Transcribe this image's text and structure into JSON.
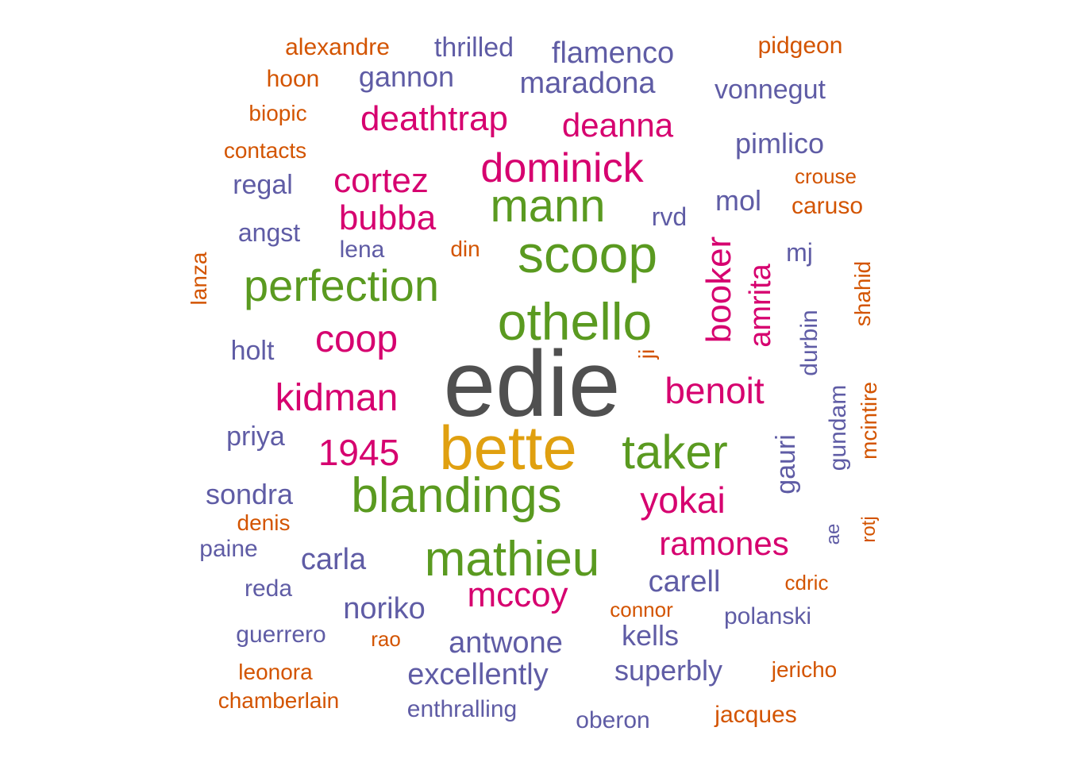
{
  "colors": {
    "gray": "#505050",
    "gold": "#E0A010",
    "green": "#5A9A20",
    "magenta": "#D6006F",
    "purple": "#5F5CA5",
    "orange": "#D35400"
  },
  "words": [
    {
      "text": "edie",
      "color": "gray"
    },
    {
      "text": "bette",
      "color": "gold"
    },
    {
      "text": "othello",
      "color": "green"
    },
    {
      "text": "scoop",
      "color": "green"
    },
    {
      "text": "mann",
      "color": "green"
    },
    {
      "text": "perfection",
      "color": "green"
    },
    {
      "text": "blandings",
      "color": "green"
    },
    {
      "text": "mathieu",
      "color": "green"
    },
    {
      "text": "taker",
      "color": "green"
    },
    {
      "text": "dominick",
      "color": "magenta"
    },
    {
      "text": "deathtrap",
      "color": "magenta"
    },
    {
      "text": "deanna",
      "color": "magenta"
    },
    {
      "text": "cortez",
      "color": "magenta"
    },
    {
      "text": "bubba",
      "color": "magenta"
    },
    {
      "text": "coop",
      "color": "magenta"
    },
    {
      "text": "kidman",
      "color": "magenta"
    },
    {
      "text": "1945",
      "color": "magenta"
    },
    {
      "text": "benoit",
      "color": "magenta"
    },
    {
      "text": "yokai",
      "color": "magenta"
    },
    {
      "text": "ramones",
      "color": "magenta"
    },
    {
      "text": "mccoy",
      "color": "magenta"
    },
    {
      "text": "booker",
      "color": "magenta"
    },
    {
      "text": "amrita",
      "color": "magenta"
    },
    {
      "text": "thrilled",
      "color": "purple"
    },
    {
      "text": "flamenco",
      "color": "purple"
    },
    {
      "text": "gannon",
      "color": "purple"
    },
    {
      "text": "maradona",
      "color": "purple"
    },
    {
      "text": "vonnegut",
      "color": "purple"
    },
    {
      "text": "pimlico",
      "color": "purple"
    },
    {
      "text": "regal",
      "color": "purple"
    },
    {
      "text": "mol",
      "color": "purple"
    },
    {
      "text": "rvd",
      "color": "purple"
    },
    {
      "text": "angst",
      "color": "purple"
    },
    {
      "text": "lena",
      "color": "purple"
    },
    {
      "text": "mj",
      "color": "purple"
    },
    {
      "text": "holt",
      "color": "purple"
    },
    {
      "text": "priya",
      "color": "purple"
    },
    {
      "text": "sondra",
      "color": "purple"
    },
    {
      "text": "paine",
      "color": "purple"
    },
    {
      "text": "carla",
      "color": "purple"
    },
    {
      "text": "reda",
      "color": "purple"
    },
    {
      "text": "noriko",
      "color": "purple"
    },
    {
      "text": "carell",
      "color": "purple"
    },
    {
      "text": "polanski",
      "color": "purple"
    },
    {
      "text": "guerrero",
      "color": "purple"
    },
    {
      "text": "antwone",
      "color": "purple"
    },
    {
      "text": "kells",
      "color": "purple"
    },
    {
      "text": "excellently",
      "color": "purple"
    },
    {
      "text": "superbly",
      "color": "purple"
    },
    {
      "text": "enthralling",
      "color": "purple"
    },
    {
      "text": "oberon",
      "color": "purple"
    },
    {
      "text": "durbin",
      "color": "purple"
    },
    {
      "text": "gundam",
      "color": "purple"
    },
    {
      "text": "gauri",
      "color": "purple"
    },
    {
      "text": "ae",
      "color": "purple"
    },
    {
      "text": "alexandre",
      "color": "orange"
    },
    {
      "text": "pidgeon",
      "color": "orange"
    },
    {
      "text": "hoon",
      "color": "orange"
    },
    {
      "text": "biopic",
      "color": "orange"
    },
    {
      "text": "contacts",
      "color": "orange"
    },
    {
      "text": "crouse",
      "color": "orange"
    },
    {
      "text": "caruso",
      "color": "orange"
    },
    {
      "text": "din",
      "color": "orange"
    },
    {
      "text": "lanza",
      "color": "orange"
    },
    {
      "text": "shahid",
      "color": "orange"
    },
    {
      "text": "ji",
      "color": "orange"
    },
    {
      "text": "mcintire",
      "color": "orange"
    },
    {
      "text": "rotj",
      "color": "orange"
    },
    {
      "text": "denis",
      "color": "orange"
    },
    {
      "text": "cdric",
      "color": "orange"
    },
    {
      "text": "connor",
      "color": "orange"
    },
    {
      "text": "rao",
      "color": "orange"
    },
    {
      "text": "leonora",
      "color": "orange"
    },
    {
      "text": "jericho",
      "color": "orange"
    },
    {
      "text": "chamberlain",
      "color": "orange"
    },
    {
      "text": "jacques",
      "color": "orange"
    }
  ]
}
